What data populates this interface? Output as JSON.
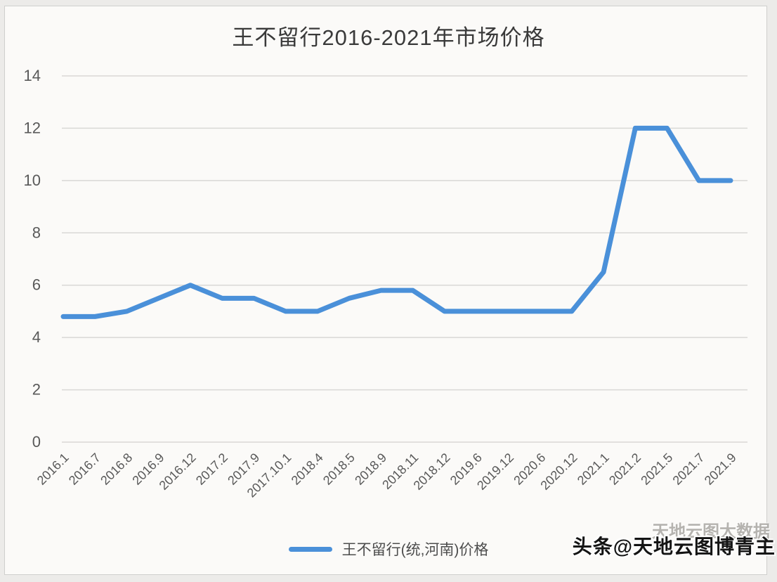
{
  "title": "王不留行2016-2021年市场价格",
  "chart_data": {
    "type": "line",
    "title": "王不留行2016-2021年市场价格",
    "categories": [
      "2016.1",
      "2016.7",
      "2016.8",
      "2016.9",
      "2016.12",
      "2017.2",
      "2017.9",
      "2017.10.1",
      "2018.4",
      "2018.5",
      "2018.9",
      "2018.11",
      "2018.12",
      "2019.6",
      "2019.12",
      "2020.6",
      "2020.12",
      "2021.1",
      "2021.2",
      "2021.5",
      "2021.7",
      "2021.9"
    ],
    "series": [
      {
        "name": "王不留行(统,河南)价格",
        "values": [
          4.8,
          4.8,
          5.0,
          5.5,
          6.0,
          5.5,
          5.5,
          5.0,
          5.0,
          5.5,
          5.8,
          5.8,
          5.0,
          5.0,
          5.0,
          5.0,
          5.0,
          6.5,
          12.0,
          12.0,
          10.0,
          10.0
        ]
      }
    ],
    "xlabel": "",
    "ylabel": "",
    "ylim": [
      0,
      14
    ],
    "yticks": [
      0,
      2,
      4,
      6,
      8,
      10,
      12,
      14
    ],
    "grid": "horizontal",
    "legend_position": "bottom"
  },
  "legend": {
    "label": "王不留行(统,河南)价格"
  },
  "watermark": {
    "primary": "头条@天地云图博青主",
    "secondary": "天地云图大数据"
  },
  "colors": {
    "line": "#4a90d9",
    "grid": "#d9d8d6",
    "axis_text": "#595959",
    "title_text": "#3a3a3a",
    "background": "#fbfaf8",
    "frame_border": "#cfcfcd"
  }
}
